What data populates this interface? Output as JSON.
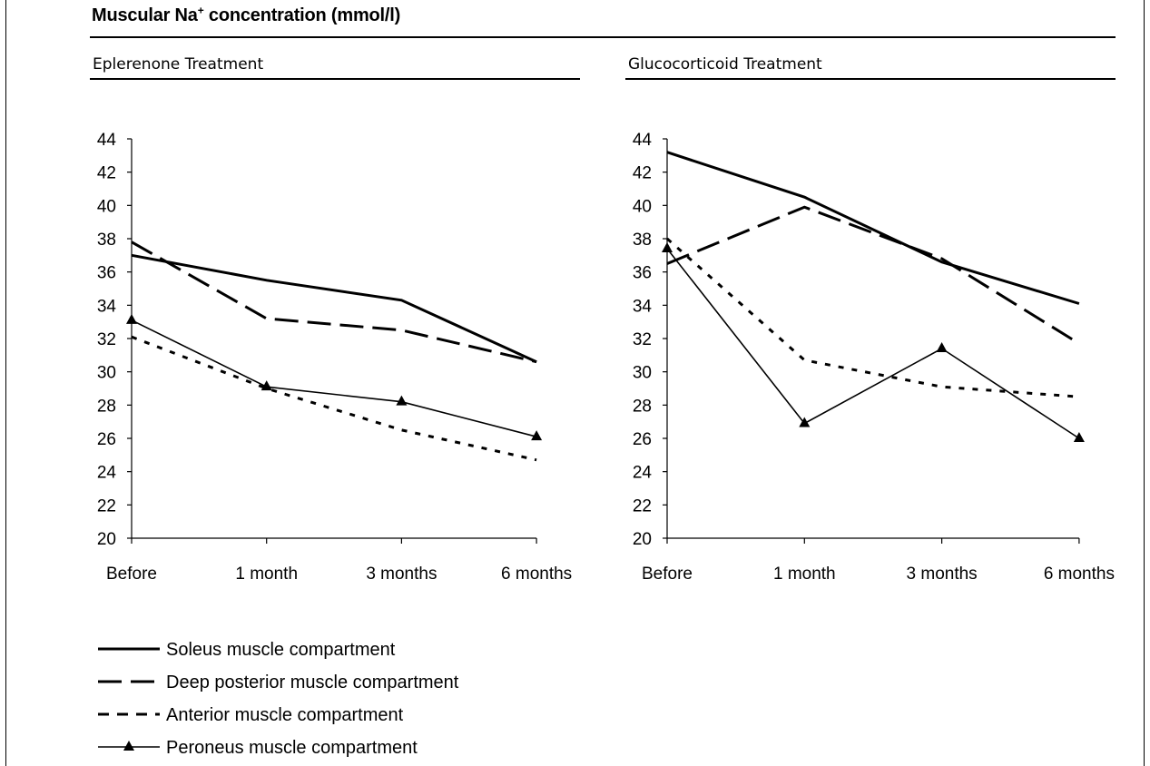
{
  "title": {
    "prefix": "Muscular Na",
    "superscript": "+",
    "suffix": " concentration (mmol/l)"
  },
  "panels": [
    {
      "title": "Eplerenone Treatment"
    },
    {
      "title": "Glucocorticoid  Treatment"
    }
  ],
  "legend": [
    {
      "label": "Soleus muscle compartment",
      "style": "solid"
    },
    {
      "label": "Deep posterior muscle compartment",
      "style": "long-dash"
    },
    {
      "label": "Anterior muscle compartment",
      "style": "short-dash"
    },
    {
      "label": "Peroneus muscle compartment",
      "style": "thin-triangle"
    }
  ],
  "colors": {
    "line": "#000000",
    "background": "#ffffff"
  },
  "chart_data": [
    {
      "type": "line",
      "title": "Eplerenone Treatment",
      "categories": [
        "Before",
        "1 month",
        "3 months",
        "6 months"
      ],
      "ylim": [
        20,
        44
      ],
      "yticks": [
        "20",
        "22",
        "24",
        "26",
        "28",
        "30",
        "32",
        "34",
        "36",
        "38",
        "40",
        "42",
        "44"
      ],
      "grid": false,
      "series": [
        {
          "name": "Soleus muscle compartment",
          "values": [
            37.0,
            35.5,
            34.3,
            30.6
          ]
        },
        {
          "name": "Deep posterior muscle compartment",
          "values": [
            37.8,
            33.2,
            32.5,
            30.6
          ]
        },
        {
          "name": "Anterior muscle compartment",
          "values": [
            32.1,
            29.0,
            26.5,
            24.7
          ]
        },
        {
          "name": "Peroneus muscle compartment",
          "values": [
            33.1,
            29.1,
            28.2,
            26.1
          ]
        }
      ]
    },
    {
      "type": "line",
      "title": "Glucocorticoid  Treatment",
      "categories": [
        "Before",
        "1 month",
        "3 months",
        "6 months"
      ],
      "ylim": [
        20,
        44
      ],
      "yticks": [
        "20",
        "22",
        "24",
        "26",
        "28",
        "30",
        "32",
        "34",
        "36",
        "38",
        "40",
        "42",
        "44"
      ],
      "grid": false,
      "series": [
        {
          "name": "Soleus muscle compartment",
          "values": [
            43.2,
            40.5,
            36.6,
            34.1
          ]
        },
        {
          "name": "Deep posterior muscle compartment",
          "values": [
            36.5,
            39.9,
            36.8,
            31.7
          ]
        },
        {
          "name": "Anterior muscle compartment",
          "values": [
            38.0,
            30.7,
            29.1,
            28.5
          ]
        },
        {
          "name": "Peroneus muscle compartment",
          "values": [
            37.4,
            26.9,
            31.4,
            26.0
          ]
        }
      ]
    }
  ]
}
